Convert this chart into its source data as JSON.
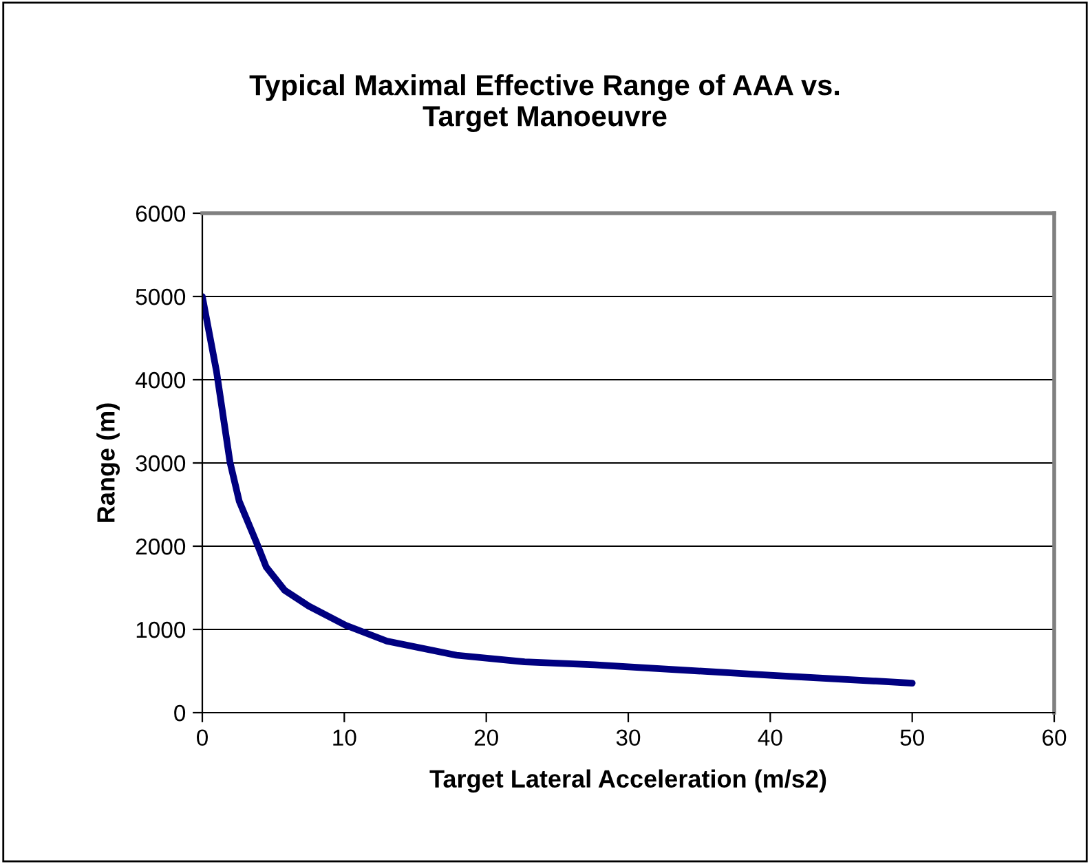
{
  "chart_data": {
    "type": "line",
    "title": "Typical Maximal Effective Range of AAA vs.\nTarget Manoeuvre",
    "xlabel": "Target Lateral Acceleration (m/s2)",
    "ylabel": "Range (m)",
    "series": [
      {
        "color": "#000080",
        "x": [
          0,
          1,
          1.95,
          2.6,
          3.9,
          4.5,
          5.8,
          7.5,
          10.1,
          13,
          17.9,
          22.7,
          27.6,
          30,
          40,
          50
        ],
        "values": [
          5000,
          4100,
          3010,
          2540,
          2010,
          1750,
          1470,
          1280,
          1050,
          860,
          690,
          610,
          575,
          550,
          450,
          355
        ]
      }
    ],
    "xlim": [
      0,
      60
    ],
    "xticks": [
      0,
      10,
      20,
      30,
      40,
      50,
      60
    ],
    "ylim": [
      0,
      6000
    ],
    "yticks": [
      0,
      1000,
      2000,
      3000,
      4000,
      5000,
      6000
    ],
    "grid": "y",
    "legend": false,
    "marker": "none",
    "line_style": "solid"
  }
}
